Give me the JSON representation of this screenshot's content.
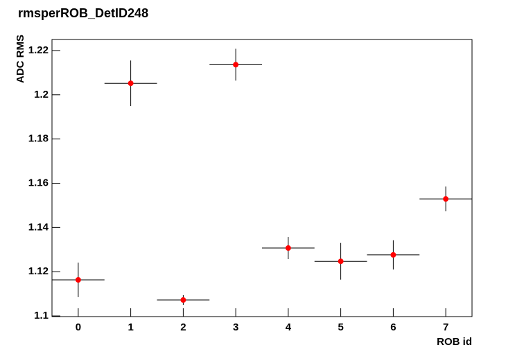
{
  "chart_data": {
    "type": "scatter",
    "title": "rmsperROB_DetID248",
    "x_label": "ROB id",
    "y_label": "ADC RMS",
    "x": [
      0,
      1,
      2,
      3,
      4,
      5,
      6,
      7
    ],
    "xerr": [
      0.5,
      0.5,
      0.5,
      0.5,
      0.5,
      0.5,
      0.5,
      0.5
    ],
    "values": [
      1.1163,
      1.2052,
      1.1072,
      1.2136,
      1.1307,
      1.1247,
      1.1276,
      1.1529
    ],
    "errors": [
      0.0078,
      0.0103,
      0.0022,
      0.0072,
      0.005,
      0.0083,
      0.0066,
      0.0056
    ],
    "color": "#ff0000",
    "xlim": [
      -0.5,
      7.5
    ],
    "ylim": [
      1.0997,
      1.225
    ],
    "xticks": [
      0,
      1,
      2,
      3,
      4,
      5,
      6,
      7
    ],
    "yticks": [
      1.1,
      1.12,
      1.14,
      1.16,
      1.18,
      1.2,
      1.22
    ]
  }
}
